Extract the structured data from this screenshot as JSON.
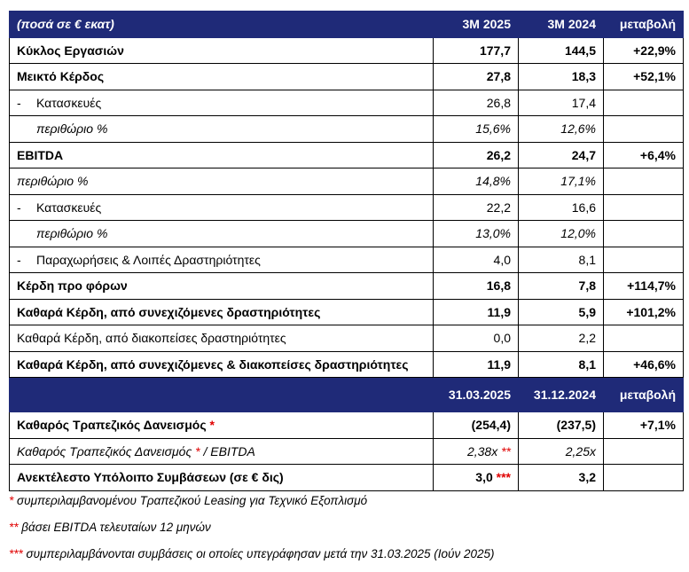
{
  "header1": {
    "label": "(ποσά σε € εκατ)",
    "col1": "3M 2025",
    "col2": "3M 2024",
    "col3": "μεταβολή"
  },
  "rows1": [
    {
      "label": "Κύκλος Εργασιών",
      "v1": "177,7",
      "v2": "144,5",
      "chg": "+22,9%"
    },
    {
      "label": "Μεικτό Κέρδος",
      "v1": "27,8",
      "v2": "18,3",
      "chg": "+52,1%"
    },
    {
      "dash": "-",
      "label": "Κατασκευές",
      "v1": "26,8",
      "v2": "17,4",
      "chg": ""
    },
    {
      "label": "περιθώριο %",
      "v1": "15,6%",
      "v2": "12,6%",
      "chg": ""
    },
    {
      "label": "EBITDA",
      "v1": "26,2",
      "v2": "24,7",
      "chg": "+6,4%"
    },
    {
      "label": "περιθώριο %",
      "v1": "14,8%",
      "v2": "17,1%",
      "chg": ""
    },
    {
      "dash": "-",
      "label": "Κατασκευές",
      "v1": "22,2",
      "v2": "16,6",
      "chg": ""
    },
    {
      "label": "περιθώριο %",
      "v1": "13,0%",
      "v2": "12,0%",
      "chg": ""
    },
    {
      "dash": "-",
      "label": "Παραχωρήσεις & Λοιπές Δραστηριότητες",
      "v1": "4,0",
      "v2": "8,1",
      "chg": ""
    },
    {
      "label": "Κέρδη προ φόρων",
      "v1": "16,8",
      "v2": "7,8",
      "chg": "+114,7%"
    },
    {
      "label": "Καθαρά Κέρδη, από συνεχιζόμενες δραστηριότητες",
      "v1": "11,9",
      "v2": "5,9",
      "chg": "+101,2%"
    },
    {
      "label": "Καθαρά Κέρδη, από διακοπείσες δραστηριότητες",
      "v1": "0,0",
      "v2": "2,2",
      "chg": ""
    },
    {
      "label": "Καθαρά Κέρδη, από συνεχιζόμενες & διακοπείσες δραστηριότητες",
      "v1": "11,9",
      "v2": "8,1",
      "chg": "+46,6%"
    }
  ],
  "header2": {
    "label": "",
    "col1": "31.03.2025",
    "col2": "31.12.2024",
    "col3": "μεταβολή"
  },
  "rows2": [
    {
      "label": "Καθαρός Τραπεζικός Δανεισμός",
      "mark": "*",
      "suffix": "",
      "v1": "(254,4)",
      "v1mark": "",
      "v2": "(237,5)",
      "chg": "+7,1%"
    },
    {
      "label": "Καθαρός Τραπεζικός Δανεισμός",
      "mark": "*",
      "suffix": "/ EBITDA",
      "v1": "2,38x",
      "v1mark": "**",
      "v2": "2,25x",
      "chg": ""
    },
    {
      "label": "Ανεκτέλεστο Υπόλοιπο Συμβάσεων (σε € δις)",
      "mark": "",
      "suffix": "",
      "v1": "3,0",
      "v1mark": "***",
      "v2": "3,2",
      "chg": ""
    }
  ],
  "notes": [
    {
      "mark": "*",
      "text": "συμπεριλαμβανομένου Τραπεζικού Leasing για Τεχνικό Εξοπλισμό"
    },
    {
      "mark": "**",
      "text": "βάσει EBITDA τελευταίων 12 μηνών"
    },
    {
      "mark": "***",
      "text": "συμπεριλαμβάνονται συμβάσεις οι οποίες υπεγράφησαν μετά την 31.03.2025 (Ιούν 2025)"
    }
  ],
  "colors": {
    "header_bg": "#1f2a78",
    "mark": "#e00000"
  }
}
